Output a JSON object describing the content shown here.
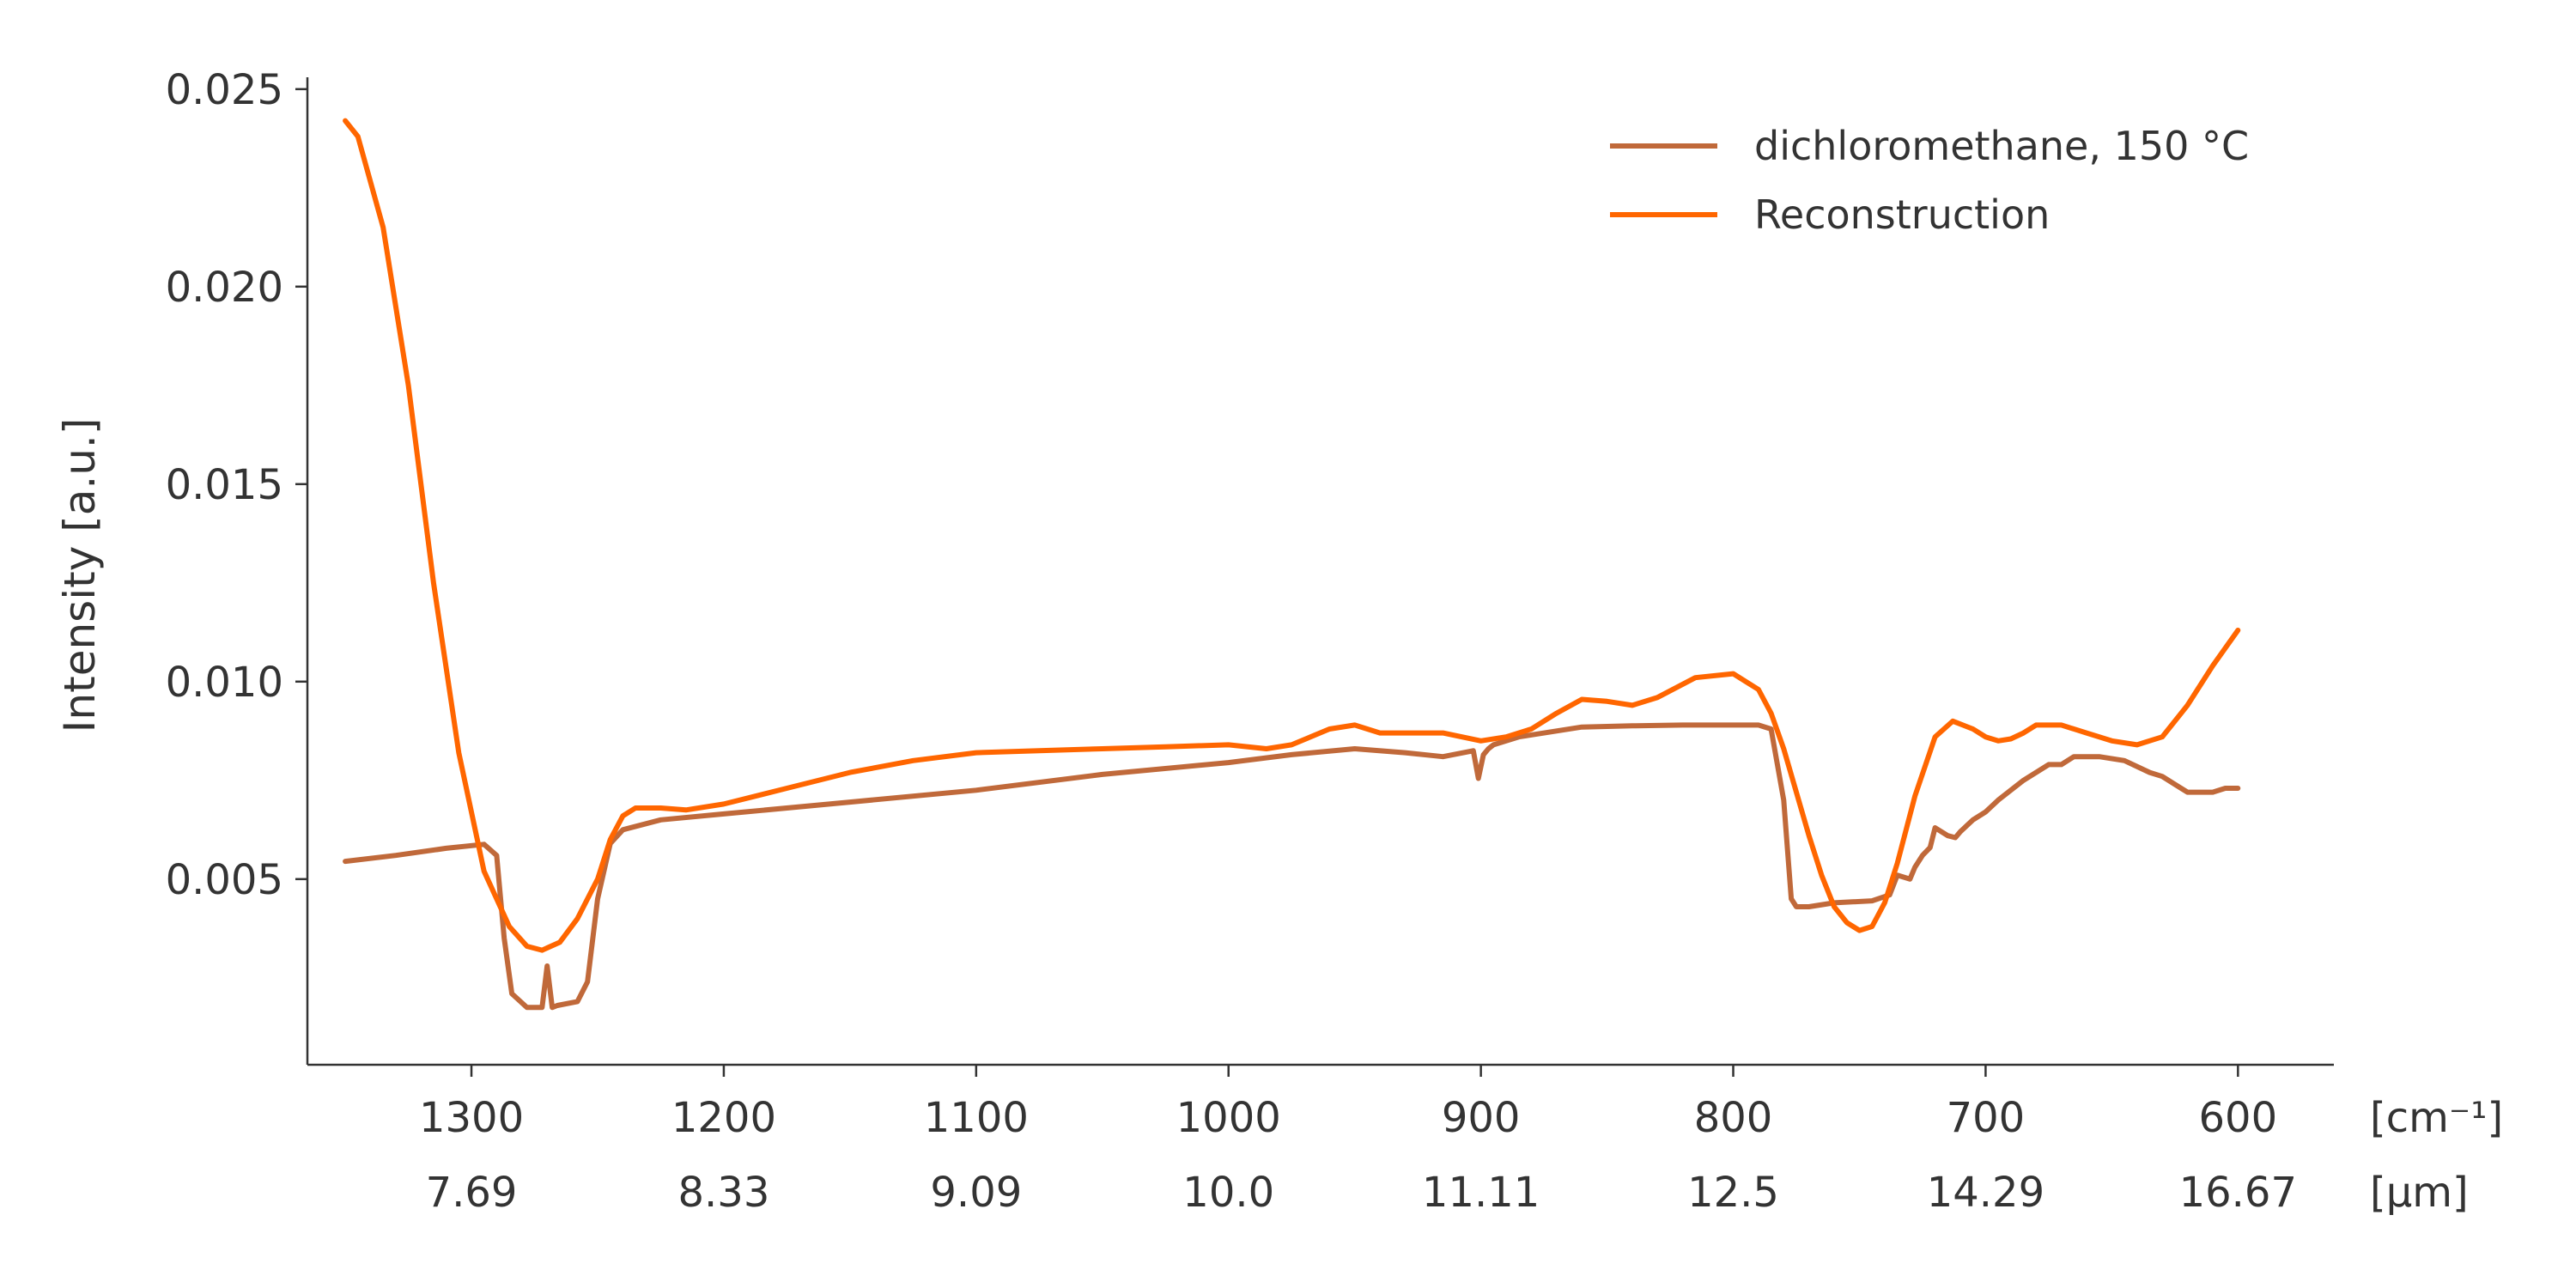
{
  "chart_data": {
    "type": "line",
    "ylabel": "Intensity [a.u.]",
    "x_unit_label": "[cm⁻¹]",
    "x2_unit_label": "[µm]",
    "xlim": [
      1365,
      562
    ],
    "ylim": [
      0.0003,
      0.0253
    ],
    "x_ticks": [
      1300,
      1200,
      1100,
      1000,
      900,
      800,
      700,
      600
    ],
    "x2_tick_labels": [
      "7.69",
      "8.33",
      "9.09",
      "10.0",
      "11.11",
      "12.5",
      "14.29",
      "16.67"
    ],
    "y_ticks": [
      0.005,
      0.01,
      0.015,
      0.02,
      0.025
    ],
    "y_tick_labels": [
      "0.005",
      "0.010",
      "0.015",
      "0.020",
      "0.025"
    ],
    "grid": false,
    "legend_position": "top-right",
    "series": [
      {
        "name": "dichloromethane, 150 °C",
        "color": "#c0693a",
        "x": [
          1350,
          1330,
          1310,
          1295,
          1290,
          1287,
          1284,
          1278,
          1272,
          1270,
          1268,
          1266,
          1258,
          1254,
          1250,
          1245,
          1240,
          1225,
          1200,
          1150,
          1100,
          1050,
          1000,
          975,
          950,
          930,
          915,
          903,
          901,
          899,
          897,
          895,
          885,
          860,
          840,
          820,
          800,
          790,
          785,
          780,
          777,
          775,
          770,
          760,
          745,
          738,
          735,
          730,
          728,
          725,
          722,
          720,
          715,
          712,
          710,
          705,
          700,
          695,
          685,
          675,
          670,
          665,
          655,
          645,
          635,
          630,
          625,
          620,
          610,
          605,
          600
        ],
        "y": [
          0.00545,
          0.0056,
          0.00578,
          0.00588,
          0.0056,
          0.0035,
          0.0021,
          0.00175,
          0.00175,
          0.0028,
          0.00175,
          0.0018,
          0.0019,
          0.0024,
          0.0045,
          0.0059,
          0.00625,
          0.0065,
          0.00665,
          0.00695,
          0.00725,
          0.00765,
          0.00795,
          0.00815,
          0.0083,
          0.0082,
          0.0081,
          0.00825,
          0.00755,
          0.00815,
          0.0083,
          0.0084,
          0.0086,
          0.00885,
          0.00888,
          0.0089,
          0.0089,
          0.0089,
          0.0088,
          0.007,
          0.0045,
          0.0043,
          0.0043,
          0.0044,
          0.00445,
          0.0046,
          0.0051,
          0.005,
          0.0053,
          0.0056,
          0.0058,
          0.0063,
          0.0061,
          0.00605,
          0.0062,
          0.0065,
          0.0067,
          0.007,
          0.0075,
          0.0079,
          0.0079,
          0.0081,
          0.0081,
          0.008,
          0.0077,
          0.0076,
          0.0074,
          0.0072,
          0.0072,
          0.0073,
          0.0073
        ]
      },
      {
        "name": "Reconstruction",
        "color": "#ff6600",
        "x": [
          1350,
          1345,
          1335,
          1325,
          1315,
          1305,
          1295,
          1285,
          1278,
          1272,
          1265,
          1258,
          1250,
          1245,
          1240,
          1235,
          1225,
          1215,
          1200,
          1175,
          1150,
          1125,
          1100,
          1075,
          1050,
          1025,
          1000,
          985,
          975,
          960,
          950,
          940,
          925,
          915,
          900,
          890,
          880,
          870,
          860,
          850,
          840,
          830,
          815,
          800,
          790,
          785,
          780,
          775,
          770,
          765,
          760,
          755,
          750,
          745,
          740,
          735,
          728,
          720,
          713,
          705,
          700,
          695,
          690,
          685,
          680,
          670,
          660,
          650,
          640,
          630,
          620,
          610,
          600
        ],
        "y": [
          0.0242,
          0.0238,
          0.0215,
          0.0175,
          0.0125,
          0.0082,
          0.0052,
          0.0038,
          0.0033,
          0.0032,
          0.0034,
          0.004,
          0.005,
          0.006,
          0.0066,
          0.0068,
          0.0068,
          0.00675,
          0.0069,
          0.0073,
          0.0077,
          0.008,
          0.0082,
          0.00825,
          0.0083,
          0.00835,
          0.0084,
          0.0083,
          0.0084,
          0.0088,
          0.0089,
          0.0087,
          0.0087,
          0.0087,
          0.0085,
          0.0086,
          0.0088,
          0.0092,
          0.00955,
          0.0095,
          0.0094,
          0.0096,
          0.0101,
          0.0102,
          0.0098,
          0.0092,
          0.0083,
          0.0072,
          0.0061,
          0.0051,
          0.0043,
          0.0039,
          0.0037,
          0.0038,
          0.0044,
          0.0054,
          0.0071,
          0.0086,
          0.009,
          0.0088,
          0.0086,
          0.0085,
          0.00855,
          0.0087,
          0.0089,
          0.0089,
          0.0087,
          0.0085,
          0.0084,
          0.0086,
          0.0094,
          0.0104,
          0.0113
        ]
      }
    ]
  }
}
